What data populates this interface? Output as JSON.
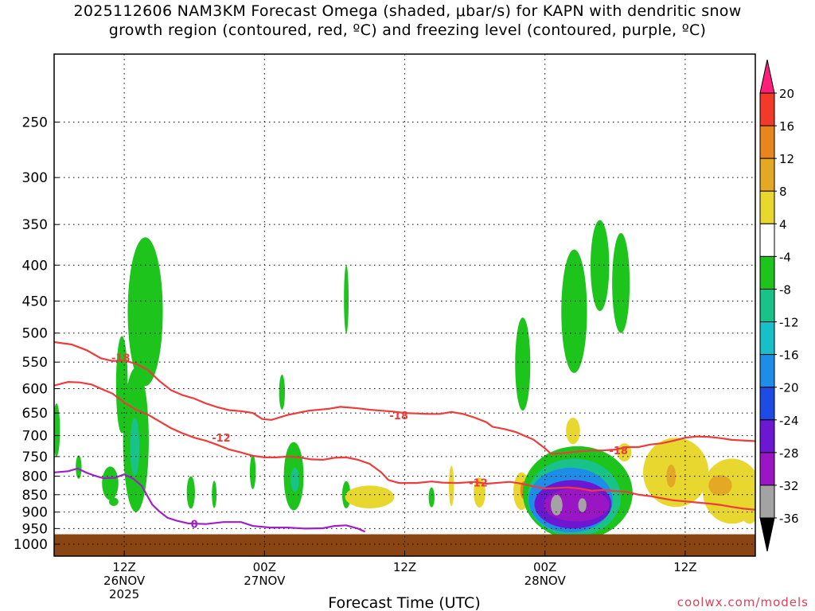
{
  "title_line1": "2025112606 NAM3KM Forecast Omega (shaded, μbar/s) for KAPN with dendritic snow",
  "title_line2": "growth region (contoured, red, ºC) and freezing level (contoured, purple, ºC)",
  "credit": "coolwx.com/models",
  "chart_data": {
    "type": "heatmap",
    "title": "2025112606 NAM3KM Forecast Omega (shaded, μbar/s) for KAPN with dendritic snow growth region (contoured, red, ºC) and freezing level (contoured, purple, ºC)",
    "xlabel": "Forecast Time (UTC)",
    "ylabel": "",
    "x_range_hours": [
      0,
      60
    ],
    "y_axis": {
      "scale": "log",
      "range": [
        1040,
        200
      ],
      "inverted": true
    },
    "x_ticks": [
      {
        "hour": 6,
        "labels": [
          "12Z",
          "26NOV",
          "2025"
        ]
      },
      {
        "hour": 18,
        "labels": [
          "00Z",
          "27NOV"
        ]
      },
      {
        "hour": 30,
        "labels": [
          "12Z"
        ]
      },
      {
        "hour": 42,
        "labels": [
          "00Z",
          "28NOV"
        ]
      },
      {
        "hour": 54,
        "labels": [
          "12Z"
        ]
      }
    ],
    "y_ticks": [
      250,
      300,
      350,
      400,
      450,
      500,
      550,
      600,
      650,
      700,
      750,
      800,
      850,
      900,
      950,
      1000
    ],
    "grid": true,
    "colorbar": {
      "levels": [
        -36,
        -32,
        -28,
        -24,
        -20,
        -16,
        -12,
        -8,
        -4,
        4,
        8,
        12,
        16,
        20
      ],
      "labels": [
        "20",
        "16",
        "12",
        "8",
        "4",
        "-4",
        "-8",
        "-12",
        "-16",
        "-20",
        "-24",
        "-28",
        "-32",
        "-36"
      ],
      "colors": [
        "#ff1f7a",
        "#f23a2a",
        "#e8851d",
        "#e3a925",
        "#e7d72f",
        "#ffffff",
        "#1cc41c",
        "#18c288",
        "#18bec8",
        "#1e8de8",
        "#1f4be5",
        "#6c18d2",
        "#9a16c4",
        "#a3a3a3",
        "#000000"
      ]
    },
    "ground_color": "#8b4513",
    "contours": [
      {
        "color": "#ee3b3b",
        "level": -12,
        "points": [
          [
            0,
            594
          ],
          [
            1.2,
            587
          ],
          [
            2.2,
            588
          ],
          [
            3.2,
            592
          ],
          [
            4,
            600
          ],
          [
            5,
            610
          ],
          [
            6,
            628
          ],
          [
            7,
            643
          ],
          [
            8,
            653
          ],
          [
            9,
            668
          ],
          [
            10,
            683
          ],
          [
            11,
            695
          ],
          [
            12,
            705
          ],
          [
            13,
            712
          ],
          [
            14,
            722
          ],
          [
            15,
            733
          ],
          [
            16,
            740
          ],
          [
            17,
            748
          ],
          [
            18,
            752
          ],
          [
            19,
            752
          ],
          [
            20,
            750
          ],
          [
            21,
            752
          ],
          [
            22,
            757
          ],
          [
            23,
            758
          ],
          [
            24,
            753
          ],
          [
            25,
            752
          ],
          [
            26,
            758
          ],
          [
            27,
            768
          ],
          [
            28,
            790
          ],
          [
            28.6,
            810
          ],
          [
            29.5,
            818
          ],
          [
            31,
            818
          ],
          [
            32.3,
            814
          ],
          [
            33.2,
            817
          ],
          [
            34.5,
            818
          ],
          [
            36,
            815
          ],
          [
            37,
            820
          ],
          [
            39,
            815
          ],
          [
            40,
            820
          ],
          [
            41,
            827
          ],
          [
            42,
            833
          ],
          [
            44,
            830
          ],
          [
            45,
            833
          ],
          [
            46,
            839
          ],
          [
            47,
            837
          ],
          [
            48,
            840
          ],
          [
            49,
            842
          ],
          [
            50,
            850
          ],
          [
            51,
            854
          ],
          [
            52,
            860
          ],
          [
            53,
            866
          ],
          [
            54,
            869
          ],
          [
            55,
            872
          ],
          [
            56,
            875
          ],
          [
            57,
            879
          ],
          [
            58,
            885
          ],
          [
            59,
            890
          ],
          [
            60,
            893
          ]
        ]
      },
      {
        "color": "#ee3b3b",
        "level": -18,
        "points": [
          [
            0,
            515
          ],
          [
            1.5,
            519
          ],
          [
            2.8,
            529
          ],
          [
            4,
            543
          ],
          [
            5,
            548
          ],
          [
            6,
            547
          ],
          [
            7,
            553
          ],
          [
            8,
            564
          ],
          [
            9,
            585
          ],
          [
            10,
            603
          ],
          [
            11,
            613
          ],
          [
            12,
            620
          ],
          [
            13,
            630
          ],
          [
            14,
            638
          ],
          [
            15,
            644
          ],
          [
            16,
            646
          ],
          [
            17,
            650
          ],
          [
            17.8,
            663
          ],
          [
            18.6,
            665
          ],
          [
            20,
            654
          ],
          [
            21.8,
            645
          ],
          [
            23.5,
            641
          ],
          [
            24.5,
            637
          ],
          [
            26,
            640
          ],
          [
            27,
            643
          ],
          [
            28,
            645
          ],
          [
            29,
            647
          ],
          [
            30,
            650
          ],
          [
            31,
            651
          ],
          [
            32,
            652
          ],
          [
            33,
            652
          ],
          [
            34,
            648
          ],
          [
            35,
            652
          ],
          [
            36,
            660
          ],
          [
            37,
            670
          ],
          [
            37.5,
            680
          ],
          [
            38.5,
            685
          ],
          [
            39.5,
            692
          ],
          [
            41,
            709
          ],
          [
            42,
            730
          ],
          [
            42.5,
            743
          ],
          [
            43.5,
            742
          ],
          [
            45,
            737
          ],
          [
            46,
            735
          ],
          [
            47,
            735
          ],
          [
            48,
            733
          ],
          [
            49,
            727
          ],
          [
            50,
            727
          ],
          [
            51,
            721
          ],
          [
            52,
            718
          ],
          [
            53,
            712
          ],
          [
            54,
            705
          ],
          [
            55,
            702
          ],
          [
            56,
            703
          ],
          [
            57,
            706
          ],
          [
            58,
            710
          ],
          [
            60,
            713
          ]
        ]
      },
      {
        "color": "#a020c8",
        "level": 0,
        "points": [
          [
            0,
            790
          ],
          [
            1.2,
            787
          ],
          [
            2,
            780
          ],
          [
            2.8,
            791
          ],
          [
            3.5,
            799
          ],
          [
            4.2,
            805
          ],
          [
            5.2,
            804
          ],
          [
            6,
            795
          ],
          [
            6.8,
            807
          ],
          [
            7.5,
            826
          ],
          [
            8.4,
            878
          ],
          [
            9,
            898
          ],
          [
            9.7,
            917
          ],
          [
            10.5,
            926
          ],
          [
            11.5,
            934
          ],
          [
            13,
            936
          ],
          [
            14.5,
            930
          ],
          [
            16,
            930
          ],
          [
            17,
            942
          ],
          [
            18.5,
            947
          ],
          [
            20,
            947
          ],
          [
            21.5,
            950
          ],
          [
            23,
            949
          ],
          [
            24,
            942
          ],
          [
            25,
            940
          ],
          [
            26,
            950
          ],
          [
            26.6,
            960
          ]
        ]
      }
    ],
    "contour_labels": [
      {
        "text": "-18",
        "hour": 5.7,
        "hpa": 542
      },
      {
        "text": "-12",
        "hour": 14.3,
        "hpa": 705
      },
      {
        "text": "-18",
        "hour": 29.5,
        "hpa": 655
      },
      {
        "text": "-12",
        "hour": 36.3,
        "hpa": 817
      },
      {
        "text": "-18",
        "hour": 48.3,
        "hpa": 735
      },
      {
        "text": "0",
        "hour": 12,
        "hpa": 935
      }
    ],
    "shaded_regions": [
      {
        "value": -6,
        "center": [
          7.8,
          480
        ],
        "extent": [
          1.5,
          115
        ]
      },
      {
        "value": -6,
        "center": [
          7.0,
          730
        ],
        "extent": [
          1.1,
          170
        ]
      },
      {
        "value": -12,
        "center": [
          6.9,
          730
        ],
        "extent": [
          0.4,
          70
        ]
      },
      {
        "value": -6,
        "center": [
          5.8,
          600
        ],
        "extent": [
          0.5,
          95
        ]
      },
      {
        "value": -6,
        "center": [
          0.2,
          690
        ],
        "extent": [
          0.3,
          60
        ]
      },
      {
        "value": -6,
        "center": [
          2.1,
          777
        ],
        "extent": [
          0.25,
          30
        ]
      },
      {
        "value": -6,
        "center": [
          4.8,
          820
        ],
        "extent": [
          0.7,
          45
        ]
      },
      {
        "value": -6,
        "center": [
          5.1,
          870
        ],
        "extent": [
          0.4,
          12
        ]
      },
      {
        "value": -6,
        "center": [
          11.7,
          845
        ],
        "extent": [
          0.35,
          45
        ]
      },
      {
        "value": -6,
        "center": [
          13.7,
          850
        ],
        "extent": [
          0.2,
          38
        ]
      },
      {
        "value": -6,
        "center": [
          17.0,
          790
        ],
        "extent": [
          0.25,
          45
        ]
      },
      {
        "value": -6,
        "center": [
          20.5,
          805
        ],
        "extent": [
          0.85,
          90
        ]
      },
      {
        "value": -12,
        "center": [
          20.6,
          810
        ],
        "extent": [
          0.35,
          32
        ]
      },
      {
        "value": -6,
        "center": [
          19.5,
          608
        ],
        "extent": [
          0.25,
          35
        ]
      },
      {
        "value": -6,
        "center": [
          25.0,
          851
        ],
        "extent": [
          0.35,
          38
        ]
      },
      {
        "value": -6,
        "center": [
          25.0,
          450
        ],
        "extent": [
          0.2,
          50
        ]
      },
      {
        "value": 6,
        "center": [
          27.0,
          857
        ],
        "extent": [
          2.1,
          32
        ]
      },
      {
        "value": 6,
        "center": [
          34.0,
          828
        ],
        "extent": [
          0.22,
          55
        ]
      },
      {
        "value": 6,
        "center": [
          36.4,
          845
        ],
        "extent": [
          0.5,
          42
        ]
      },
      {
        "value": -6,
        "center": [
          32.3,
          858
        ],
        "extent": [
          0.25,
          28
        ]
      },
      {
        "value": 6,
        "center": [
          40.0,
          842
        ],
        "extent": [
          0.7,
          52
        ]
      },
      {
        "value": 14,
        "center": [
          40.2,
          838
        ],
        "extent": [
          0.3,
          25
        ]
      },
      {
        "value": -6,
        "center": [
          40.1,
          560
        ],
        "extent": [
          0.65,
          85
        ]
      },
      {
        "value": -6,
        "center": [
          44.5,
          475
        ],
        "extent": [
          1.1,
          95
        ]
      },
      {
        "value": -6,
        "center": [
          46.7,
          405
        ],
        "extent": [
          0.8,
          60
        ]
      },
      {
        "value": -6,
        "center": [
          48.5,
          430
        ],
        "extent": [
          0.75,
          70
        ]
      },
      {
        "value": 6,
        "center": [
          44.4,
          690
        ],
        "extent": [
          0.6,
          30
        ]
      },
      {
        "value": -6,
        "center": [
          44.8,
          855
        ],
        "extent": [
          4.7,
          130
        ]
      },
      {
        "value": -10,
        "center": [
          44.5,
          865
        ],
        "extent": [
          4.0,
          110
        ]
      },
      {
        "value": -18,
        "center": [
          44.2,
          870
        ],
        "extent": [
          3.6,
          92
        ]
      },
      {
        "value": -25,
        "center": [
          44.4,
          880
        ],
        "extent": [
          3.3,
          70
        ]
      },
      {
        "value": -30,
        "center": [
          44.7,
          880
        ],
        "extent": [
          2.8,
          48
        ]
      },
      {
        "value": -34,
        "center": [
          43.0,
          880
        ],
        "extent": [
          0.5,
          30
        ]
      },
      {
        "value": -34,
        "center": [
          45.2,
          880
        ],
        "extent": [
          0.35,
          20
        ]
      },
      {
        "value": 6,
        "center": [
          48.8,
          740
        ],
        "extent": [
          0.6,
          22
        ]
      },
      {
        "value": 6,
        "center": [
          53.2,
          795
        ],
        "extent": [
          2.8,
          90
        ]
      },
      {
        "value": 6,
        "center": [
          58.0,
          845
        ],
        "extent": [
          2.5,
          90
        ]
      },
      {
        "value": 10,
        "center": [
          57.0,
          825
        ],
        "extent": [
          1.0,
          28
        ]
      },
      {
        "value": 10,
        "center": [
          52.8,
          800
        ],
        "extent": [
          0.4,
          30
        ]
      },
      {
        "value": 6,
        "center": [
          59.5,
          880
        ],
        "extent": [
          0.9,
          55
        ]
      }
    ]
  }
}
